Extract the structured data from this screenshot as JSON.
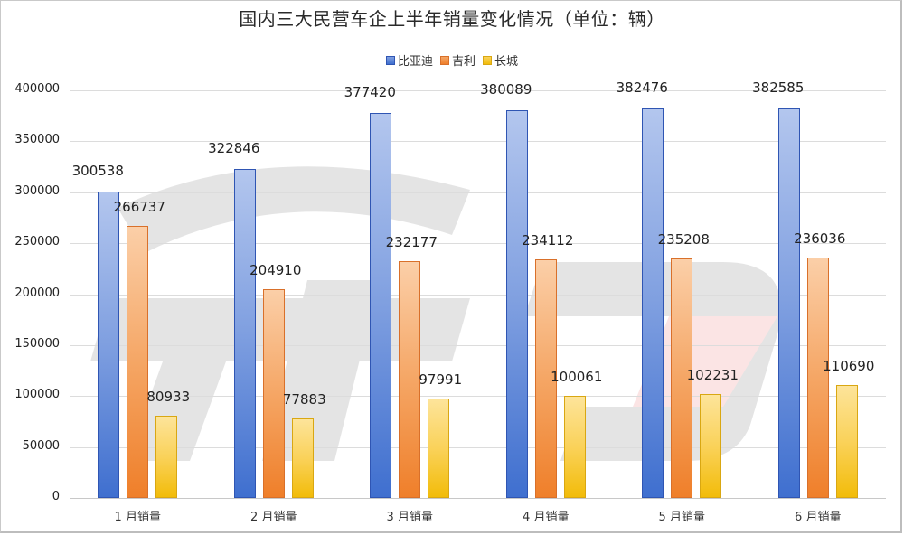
{
  "title": "国内三大民营车企上半年销量变化情况（单位：辆）",
  "legend": [
    {
      "name": "比亚迪",
      "color": "#4472c4"
    },
    {
      "name": "吉利",
      "color": "#ed7d31"
    },
    {
      "name": "长城",
      "color": "#ffc000"
    }
  ],
  "y_ticks": [
    "0",
    "50000",
    "100000",
    "150000",
    "200000",
    "250000",
    "300000",
    "350000",
    "400000"
  ],
  "x_labels": [
    "1 月销量",
    "2 月销量",
    "3 月销量",
    "4 月销量",
    "5 月销量",
    "6 月销量"
  ],
  "chart_data": {
    "type": "bar",
    "title": "国内三大民营车企上半年销量变化情况（单位：辆）",
    "xlabel": "",
    "ylabel": "",
    "categories": [
      "1 月销量",
      "2 月销量",
      "3 月销量",
      "4 月销量",
      "5 月销量",
      "6 月销量"
    ],
    "series": [
      {
        "name": "比亚迪",
        "color": "#4472c4",
        "values": [
          300538,
          322846,
          377420,
          380089,
          382476,
          382585
        ]
      },
      {
        "name": "吉利",
        "color": "#ed7d31",
        "values": [
          266737,
          204910,
          232177,
          234112,
          235208,
          236036
        ]
      },
      {
        "name": "长城",
        "color": "#ffc000",
        "values": [
          80933,
          77883,
          97991,
          100061,
          102231,
          110690
        ]
      }
    ],
    "ylim": [
      0,
      400000
    ],
    "y_tick_step": 50000,
    "grid": true,
    "legend_position": "top",
    "data_labels": true
  }
}
